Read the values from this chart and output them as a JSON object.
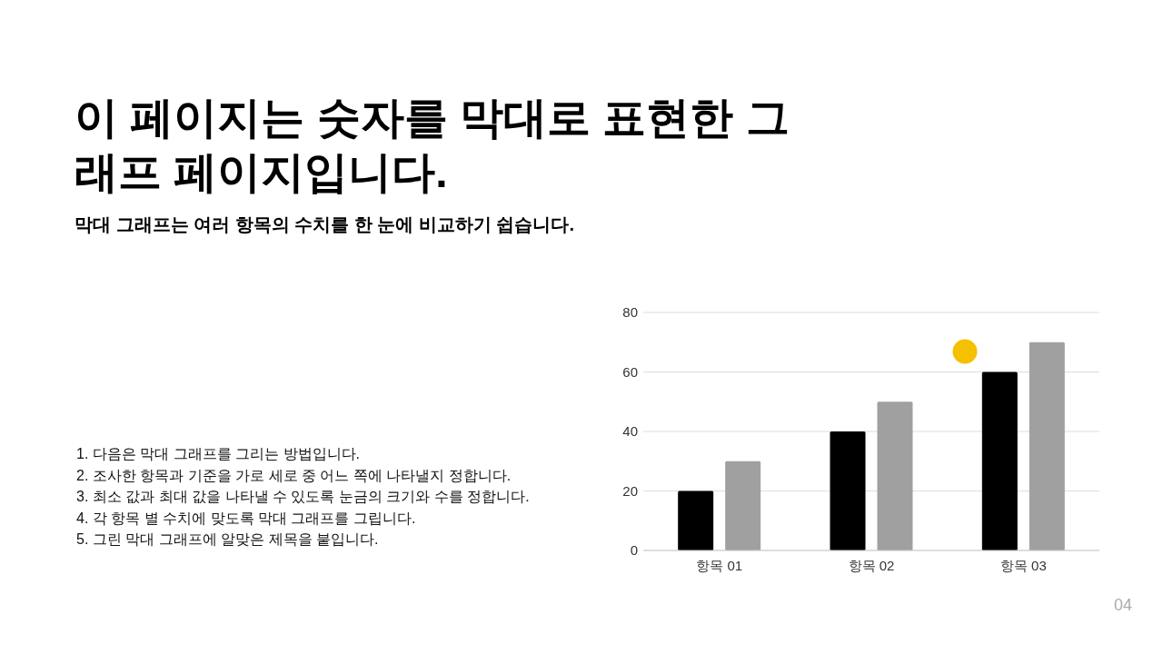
{
  "chart_data": {
    "type": "bar",
    "title": "이 페이지는 숫자를 막대로 표현한 그래프 페이지입니다.",
    "subtitle": "막대 그래프는 여러 항목의 수치를 한 눈에 비교하기 쉽습니다.",
    "categories": [
      "항목 01",
      "항목 02",
      "항목 03"
    ],
    "series": [
      {
        "color": "#000000",
        "values": [
          20,
          40,
          60
        ]
      },
      {
        "color": "#a0a0a0",
        "values": [
          30,
          50,
          70
        ]
      }
    ],
    "ylim": [
      0,
      80
    ],
    "yticks": [
      0,
      20,
      40,
      60,
      80
    ],
    "grid": "y",
    "annotations": [
      "1. 다음은 막대 그래프를 그리는 방법입니다.",
      "2. 조사한 항목과 기준을 가로 세로 중 어느 쪽에 나타낼지 정합니다.",
      "3. 최소 값과 최대 값을 나타낼 수 있도록 눈금의 크기와 수를 정합니다.",
      "4. 각 항목 별 수치에 맞도록 막대 그래프를 그립니다.",
      "5. 그린 막대 그래프에 알맞은 제목을 붙입니다.",
      "04"
    ]
  }
}
